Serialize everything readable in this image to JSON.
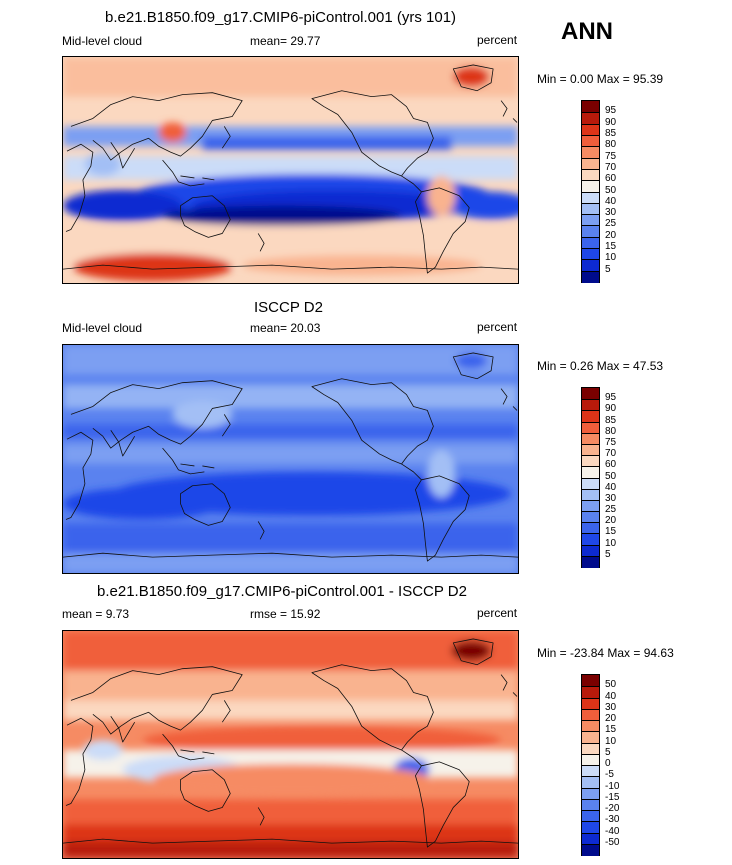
{
  "season": "ANN",
  "panels": [
    {
      "title": "b.e21.B1850.f09_g17.CMIP6-piControl.001 (yrs 101)",
      "left_label": "Mid-level cloud",
      "center_label": "mean=  29.77",
      "right_label": "percent",
      "minmax": "Min =   0.00 Max =  95.39"
    },
    {
      "title": "ISCCP D2",
      "left_label": "Mid-level cloud",
      "center_label": "mean=  20.03",
      "right_label": "percent",
      "minmax": "Min =   0.26 Max =  47.53"
    },
    {
      "title": "b.e21.B1850.f09_g17.CMIP6-piControl.001 - ISCCP D2",
      "left_label": "mean =   9.73",
      "center_label": "rmse =  15.92",
      "right_label": "percent",
      "minmax": "Min = -23.84 Max =  94.63"
    }
  ],
  "chart_data": [
    {
      "type": "heatmap",
      "projection": "cylindrical equidistant, Pacific-centered",
      "field": "Mid-level cloud (model)",
      "units": "percent",
      "mean": 29.77,
      "min": 0.0,
      "max": 95.39,
      "colorbar_levels": [
        5,
        10,
        15,
        20,
        25,
        30,
        40,
        50,
        60,
        70,
        75,
        80,
        85,
        90,
        95
      ],
      "colorbar_colors": [
        "#000b8c",
        "#0d2ad1",
        "#1f47e8",
        "#3b64ec",
        "#5a82ef",
        "#7c9ff2",
        "#a3bff5",
        "#cbdcf8",
        "#f6f2ea",
        "#fbd8c0",
        "#f9b38f",
        "#f68b63",
        "#f05e3b",
        "#dd3418",
        "#b81a0b",
        "#7a0000"
      ]
    },
    {
      "type": "heatmap",
      "projection": "cylindrical equidistant, Pacific-centered",
      "field": "Mid-level cloud (ISCCP D2)",
      "units": "percent",
      "mean": 20.03,
      "min": 0.26,
      "max": 47.53,
      "colorbar_levels": [
        5,
        10,
        15,
        20,
        25,
        30,
        40,
        50,
        60,
        70,
        75,
        80,
        85,
        90,
        95
      ],
      "colorbar_colors": [
        "#000b8c",
        "#0d2ad1",
        "#1f47e8",
        "#3b64ec",
        "#5a82ef",
        "#7c9ff2",
        "#a3bff5",
        "#cbdcf8",
        "#f6f2ea",
        "#fbd8c0",
        "#f9b38f",
        "#f68b63",
        "#f05e3b",
        "#dd3418",
        "#b81a0b",
        "#7a0000"
      ]
    },
    {
      "type": "heatmap",
      "projection": "cylindrical equidistant, Pacific-centered",
      "field": "Mid-level cloud difference (model - ISCCP D2)",
      "units": "percent",
      "mean": 9.73,
      "rmse": 15.92,
      "min": -23.84,
      "max": 94.63,
      "colorbar_levels": [
        -50,
        -40,
        -30,
        -20,
        -15,
        -10,
        -5,
        0,
        5,
        10,
        15,
        20,
        30,
        40,
        50
      ],
      "colorbar_colors": [
        "#000b8c",
        "#0d2ad1",
        "#1f47e8",
        "#3b64ec",
        "#5a82ef",
        "#7c9ff2",
        "#a3bff5",
        "#cbdcf8",
        "#f6f2ea",
        "#fbd8c0",
        "#f9b38f",
        "#f68b63",
        "#f05e3b",
        "#dd3418",
        "#b81a0b",
        "#7a0000"
      ]
    }
  ]
}
